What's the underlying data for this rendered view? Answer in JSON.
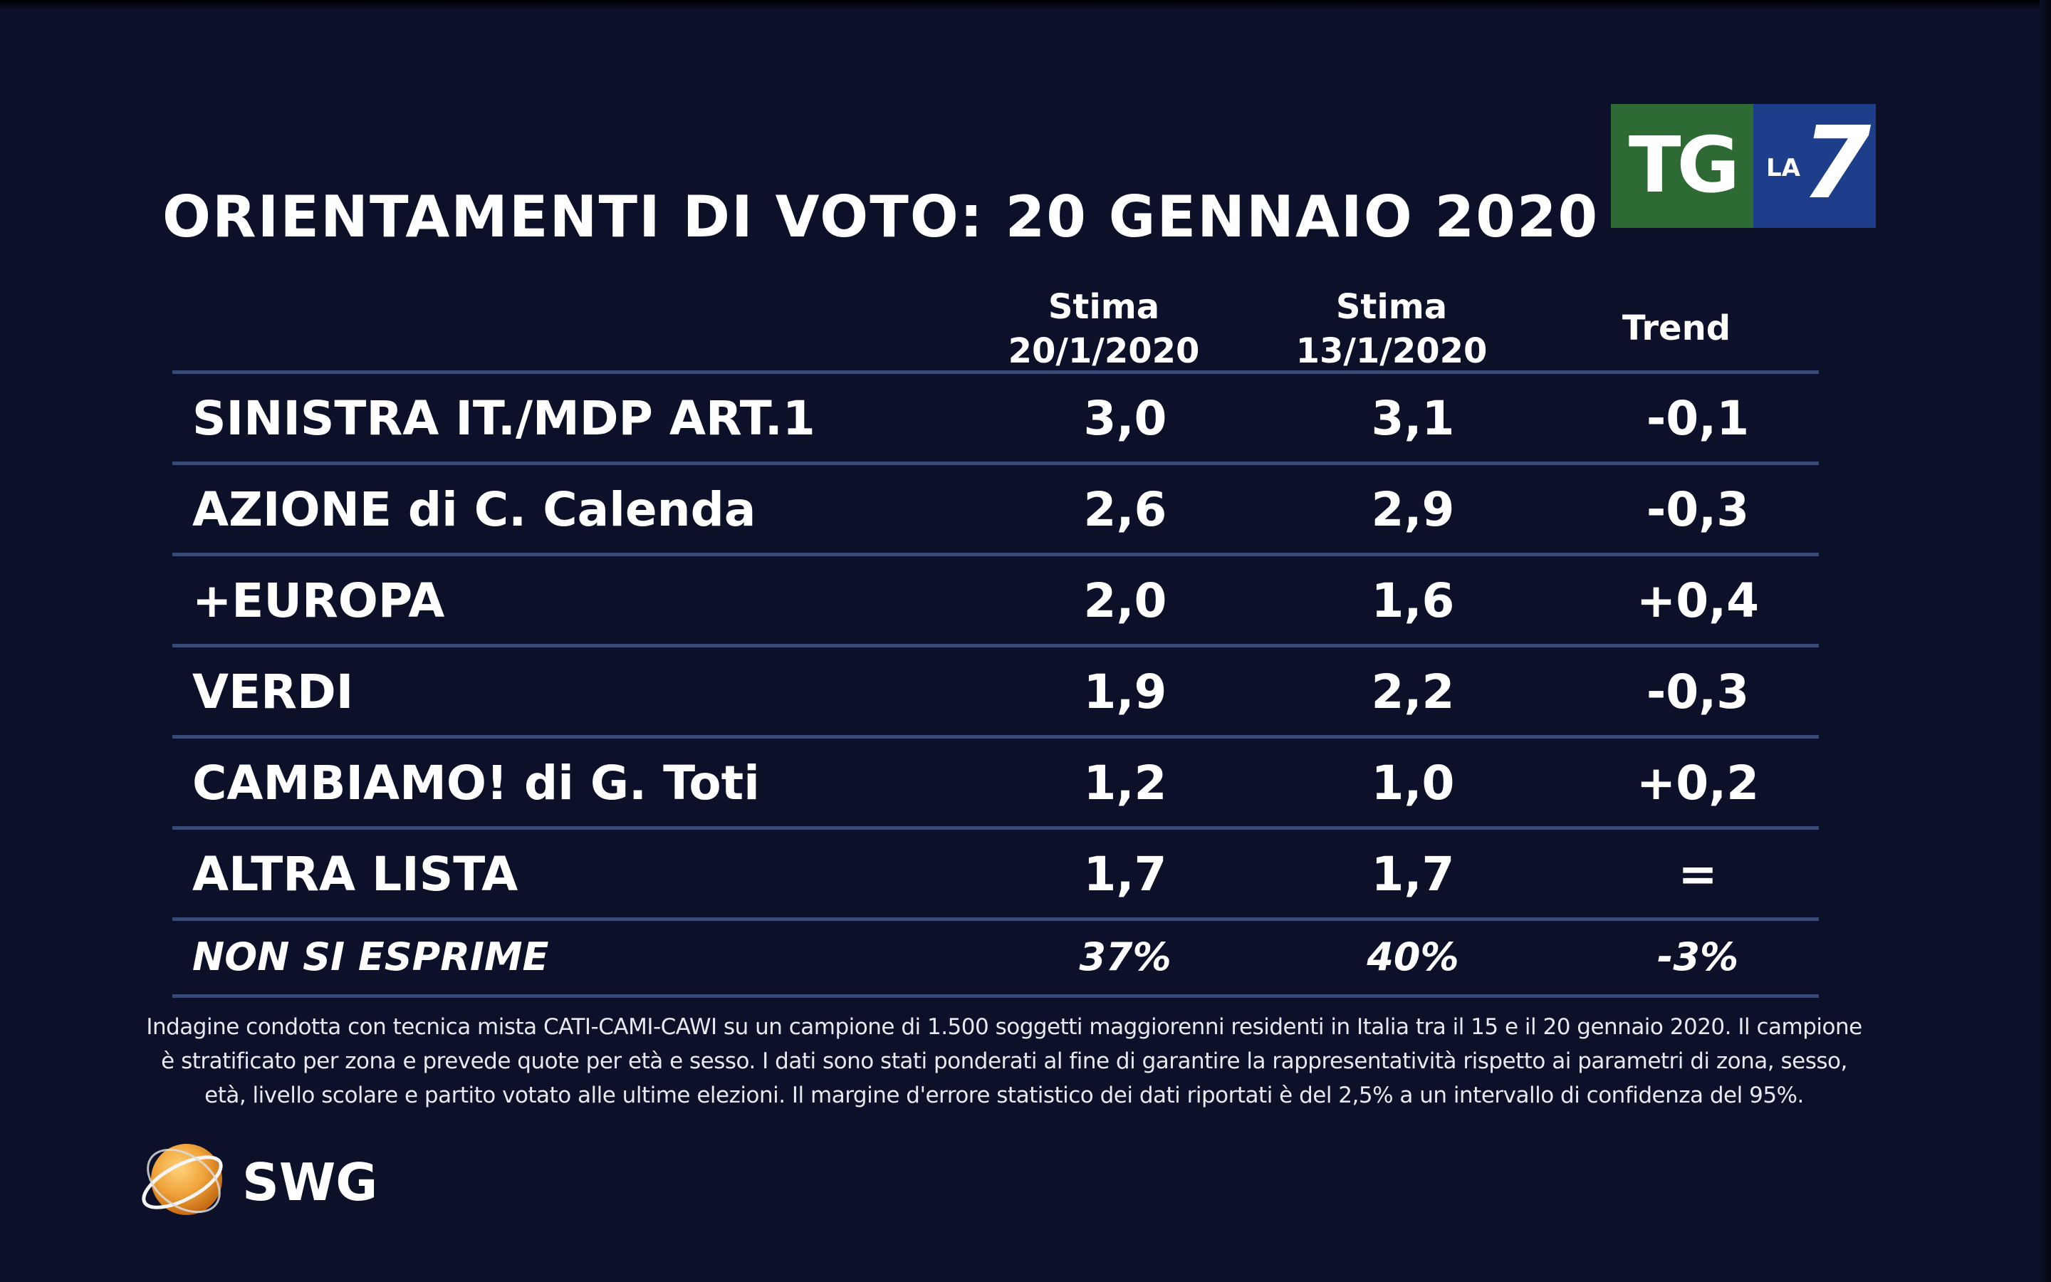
{
  "title": "ORIENTAMENTI DI VOTO: 20 GENNAIO 2020",
  "logo": {
    "tg": "TG",
    "la": "LA",
    "seven": "7"
  },
  "columns": {
    "col1": {
      "line1": "Stima",
      "line2": "20/1/2020"
    },
    "col2": {
      "line1": "Stima",
      "line2": "13/1/2020"
    },
    "col3": {
      "line1": "Trend"
    }
  },
  "chart_data": {
    "type": "table",
    "title": "ORIENTAMENTI DI VOTO: 20 GENNAIO 2020",
    "headers": [
      "",
      "Stima 20/1/2020",
      "Stima 13/1/2020",
      "Trend"
    ],
    "rows": [
      {
        "label": "SINISTRA IT./MDP ART.1",
        "stima_20": "3,0",
        "stima_13": "3,1",
        "trend": "-0,1"
      },
      {
        "label": "AZIONE di C. Calenda",
        "stima_20": "2,6",
        "stima_13": "2,9",
        "trend": "-0,3"
      },
      {
        "label": "+EUROPA",
        "stima_20": "2,0",
        "stima_13": "1,6",
        "trend": "+0,4"
      },
      {
        "label": "VERDI",
        "stima_20": "1,9",
        "stima_13": "2,2",
        "trend": "-0,3"
      },
      {
        "label": "CAMBIAMO! di G. Toti",
        "stima_20": "1,2",
        "stima_13": "1,0",
        "trend": "+0,2"
      },
      {
        "label": "ALTRA LISTA",
        "stima_20": "1,7",
        "stima_13": "1,7",
        "trend": "="
      },
      {
        "label": "NON SI ESPRIME",
        "stima_20": "37%",
        "stima_13": "40%",
        "trend": "-3%"
      }
    ]
  },
  "footnote": "Indagine condotta con tecnica mista CATI-CAMI-CAWI su un campione di 1.500 soggetti maggiorenni residenti in Italia tra il 15 e il 20 gennaio 2020. Il campione è stratificato per zona e prevede quote per età e sesso. I dati sono stati ponderati al fine di garantire la rappresentatività rispetto ai parametri di zona, sesso, età, livello scolare e partito votato alle ultime elezioni. Il margine d'errore statistico dei dati riportati è del 2,5% a un intervallo di confidenza del 95%.",
  "source_logo": {
    "text": "SWG"
  },
  "colors": {
    "background": "#0c1129",
    "rule": "#3a4a78",
    "tg_green": "#2d6a34",
    "la7_blue": "#1e3d8a",
    "swg_orange": "#f0a33a"
  }
}
